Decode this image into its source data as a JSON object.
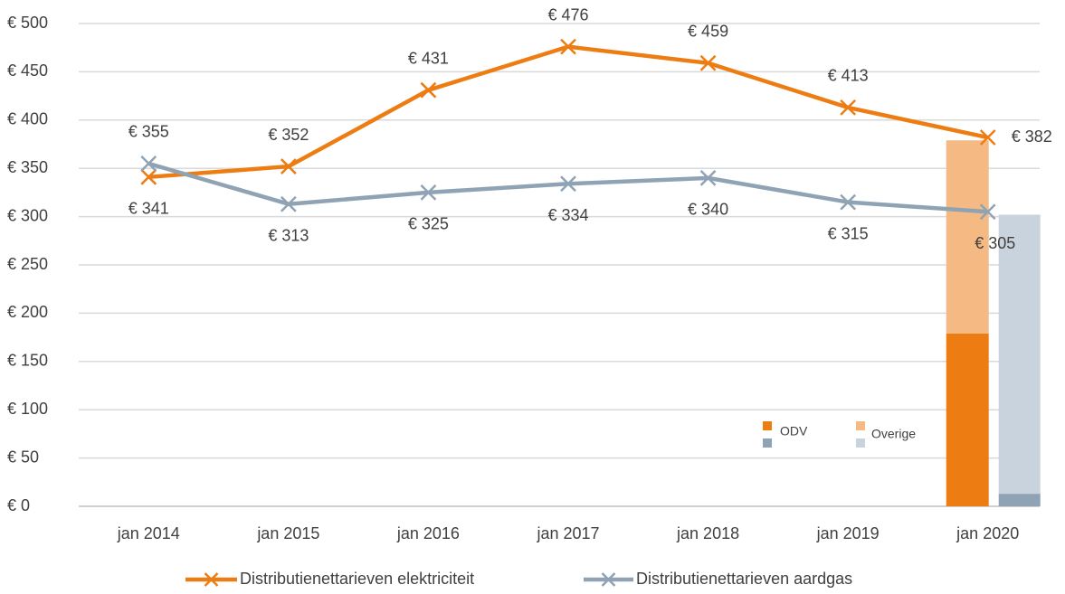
{
  "chart_data": {
    "type": "line",
    "categories": [
      "jan 2014",
      "jan 2015",
      "jan 2016",
      "jan 2017",
      "jan 2018",
      "jan 2019",
      "jan 2020"
    ],
    "ylim": [
      0,
      500
    ],
    "yticks": [
      {
        "value": 0,
        "label": "€ 0"
      },
      {
        "value": 50,
        "label": "€ 50"
      },
      {
        "value": 100,
        "label": "€ 100"
      },
      {
        "value": 150,
        "label": "€ 150"
      },
      {
        "value": 200,
        "label": "€ 200"
      },
      {
        "value": 250,
        "label": "€ 250"
      },
      {
        "value": 300,
        "label": "€ 300"
      },
      {
        "value": 350,
        "label": "€ 350"
      },
      {
        "value": 400,
        "label": "€ 400"
      },
      {
        "value": 450,
        "label": "€ 450"
      },
      {
        "value": 500,
        "label": "€ 500"
      }
    ],
    "grid": true,
    "series": [
      {
        "name": "Distributienettarieven elektriciteit",
        "color": "#ed7d12",
        "values": [
          341,
          352,
          431,
          476,
          459,
          413,
          382
        ],
        "value_labels": [
          "€ 341",
          "€ 352",
          "€ 431",
          "€ 476",
          "€ 459",
          "€ 413",
          "€ 382"
        ]
      },
      {
        "name": "Distributienettarieven aardgas",
        "color": "#8fa3b5",
        "values": [
          355,
          313,
          325,
          334,
          340,
          315,
          305
        ],
        "value_labels": [
          "€ 355",
          "€ 313",
          "€ 325",
          "€ 334",
          "€ 340",
          "€ 315",
          "€ 305"
        ]
      }
    ],
    "bar_series": [
      {
        "name": "ODV",
        "colors": [
          "#ed7d12",
          "#8fa3b5"
        ],
        "values": [
          179,
          13
        ]
      },
      {
        "name": "Overige",
        "colors": [
          "#f5b983",
          "#c8d3dd"
        ],
        "values": [
          200,
          289
        ]
      }
    ]
  }
}
